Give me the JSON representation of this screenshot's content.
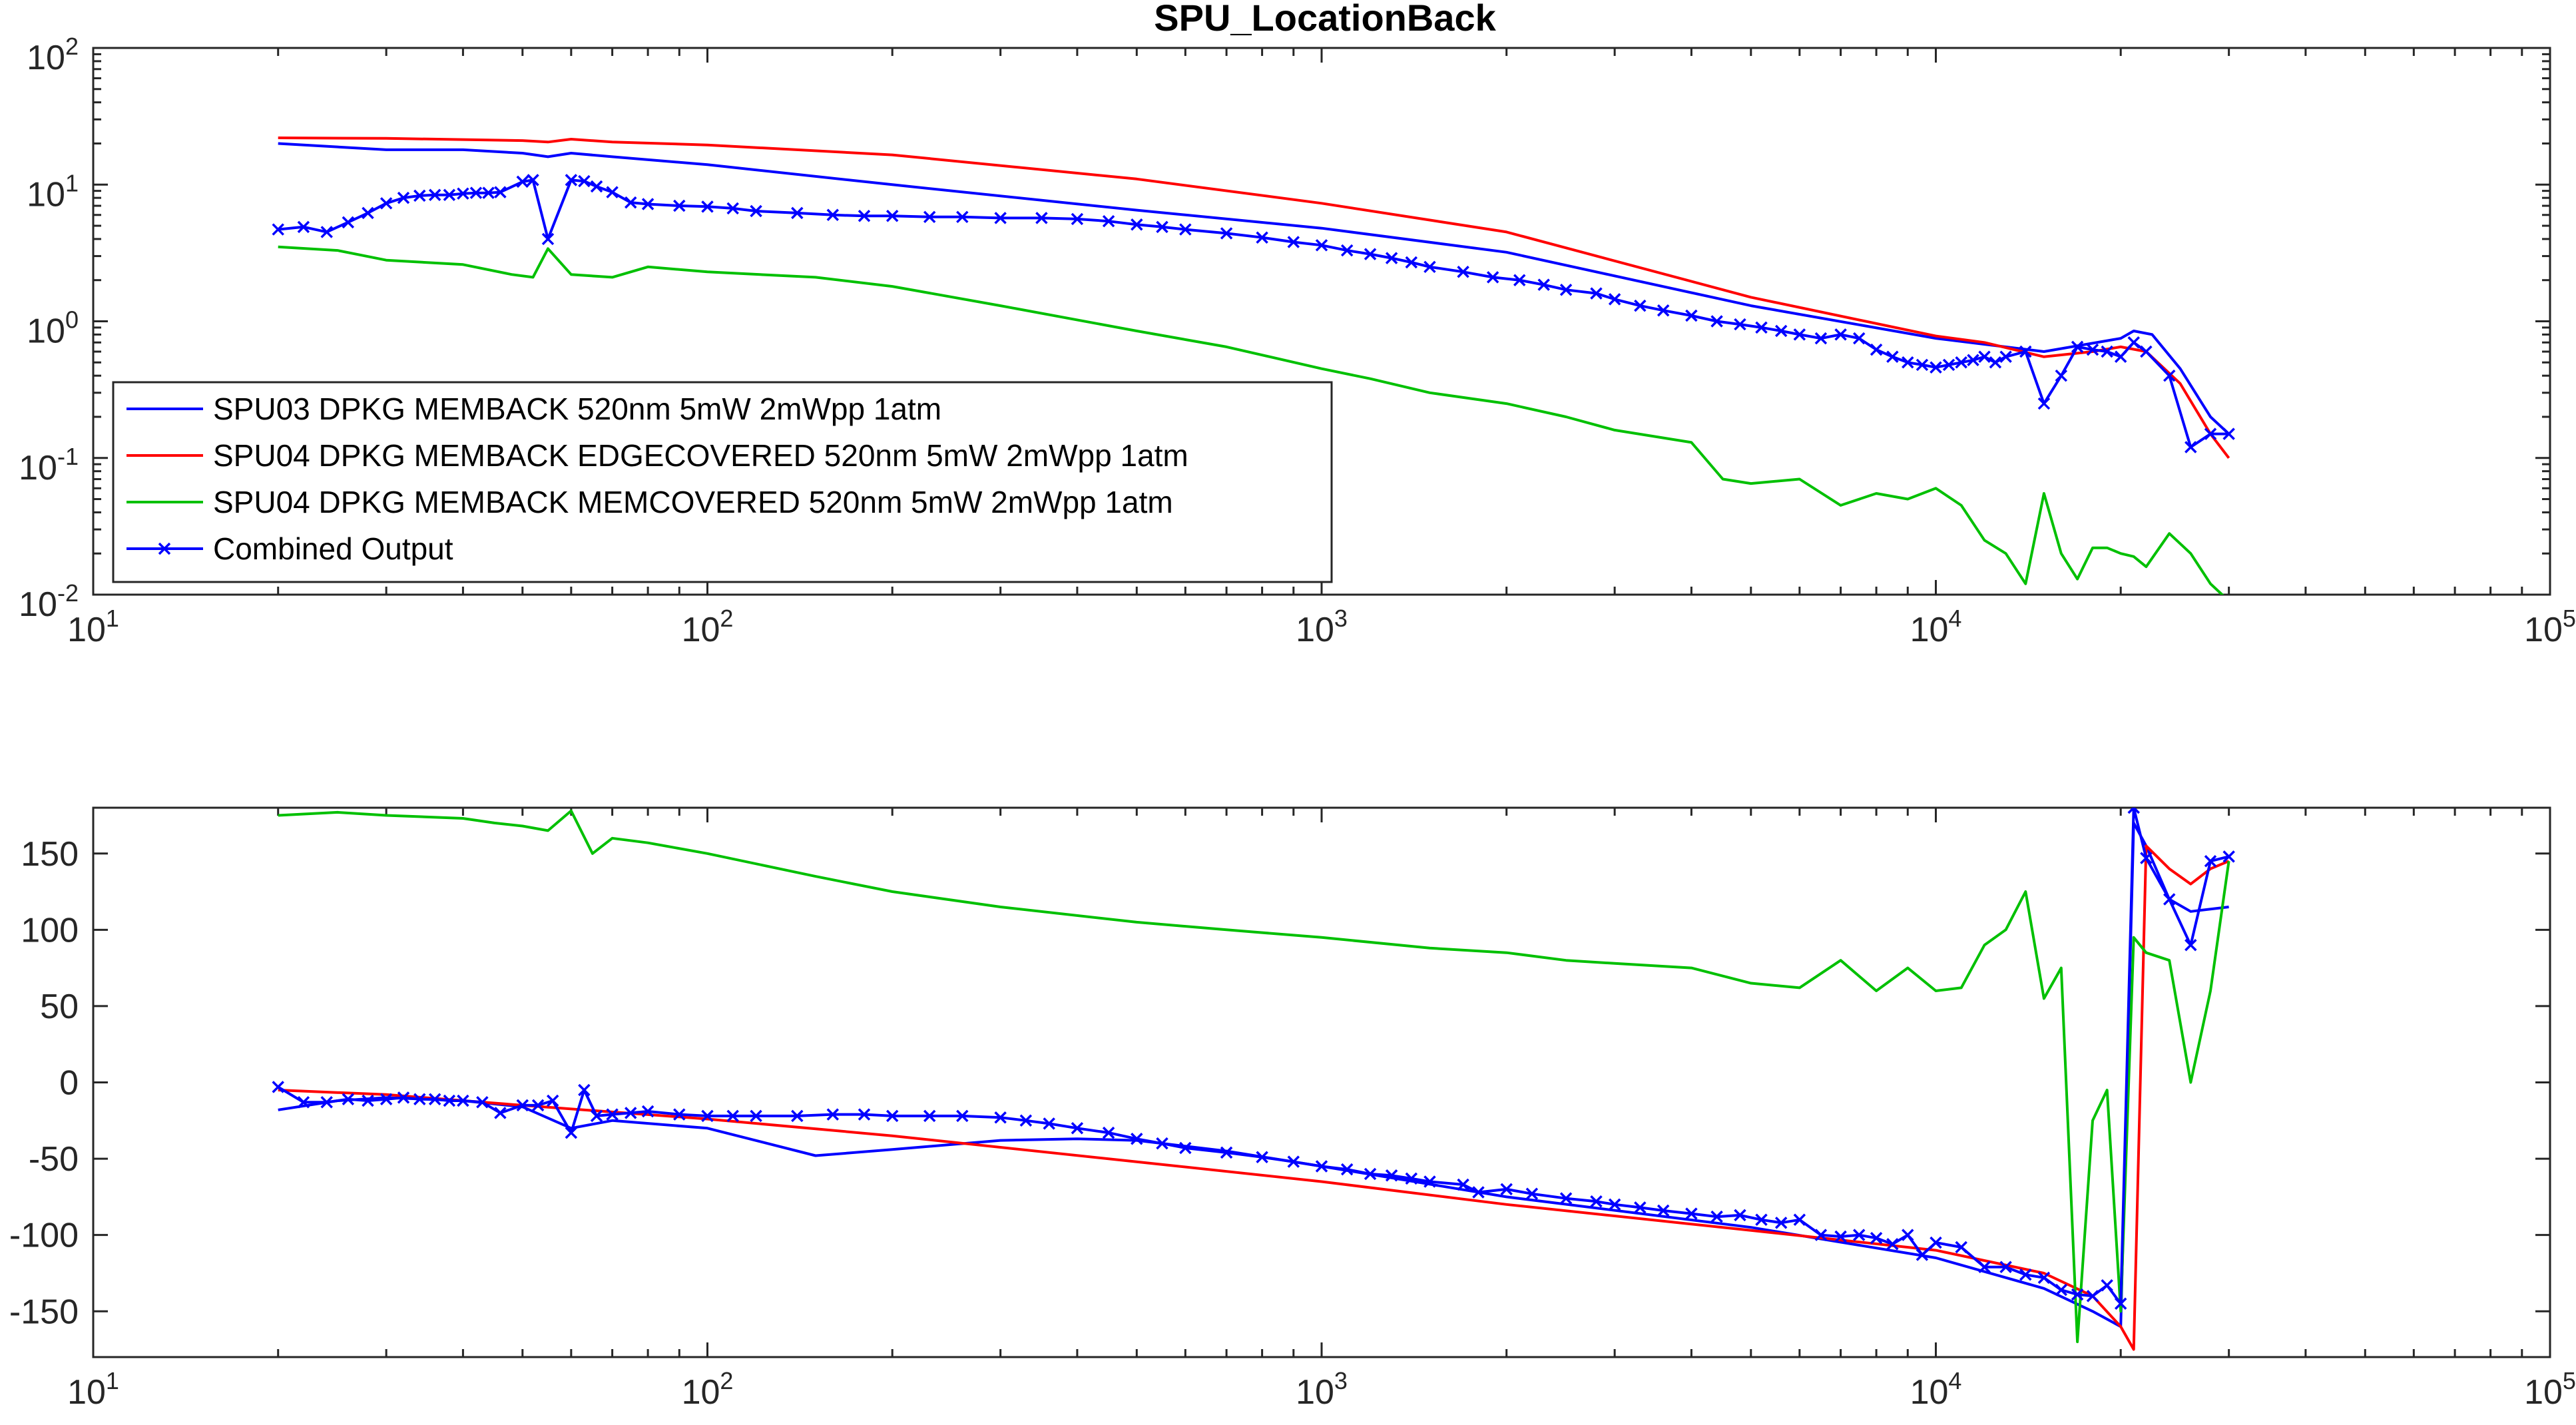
{
  "chart_data": {
    "title": "SPU_LocationBack",
    "panels": [
      {
        "type": "line",
        "name": "magnitude",
        "xscale": "log",
        "yscale": "log",
        "xlim": [
          10,
          100000
        ],
        "ylim": [
          0.01,
          100
        ],
        "xticks": [
          10,
          100,
          1000,
          10000,
          100000
        ],
        "yticks": [
          0.01,
          0.1,
          1,
          10,
          100
        ],
        "xtick_labels": [
          {
            "base": "10",
            "exp": "1"
          },
          {
            "base": "10",
            "exp": "2"
          },
          {
            "base": "10",
            "exp": "3"
          },
          {
            "base": "10",
            "exp": "4"
          },
          {
            "base": "10",
            "exp": "5"
          }
        ],
        "ytick_labels": [
          {
            "base": "10",
            "exp": "-2"
          },
          {
            "base": "10",
            "exp": "-1"
          },
          {
            "base": "10",
            "exp": "0"
          },
          {
            "base": "10",
            "exp": "1"
          },
          {
            "base": "10",
            "exp": "2"
          }
        ],
        "legend": {
          "location": "lower-left",
          "entries": [
            {
              "label": "SPU03 DPKG MEMBACK 520nm 5mW 2mWpp 1atm",
              "color": "#0000ff",
              "marker": false
            },
            {
              "label": "SPU04 DPKG MEMBACK EDGECOVERED 520nm 5mW 2mWpp 1atm",
              "color": "#ff0000",
              "marker": false
            },
            {
              "label": "SPU04 DPKG MEMBACK MEMCOVERED 520nm 5mW 2mWpp 1atm",
              "color": "#00c000",
              "marker": false
            },
            {
              "label": "Combined Output",
              "color": "#0000ff",
              "marker": true
            }
          ]
        },
        "series": [
          {
            "name": "SPU03 DPKG MEMBACK 520nm 5mW 2mWpp 1atm",
            "color": "#0000ff",
            "marker": false,
            "x": [
              20,
              30,
              40,
              50,
              55,
              60,
              70,
              100,
              200,
              500,
              1000,
              2000,
              5000,
              10000,
              15000,
              20000,
              21000,
              22500,
              25000,
              28000,
              30000
            ],
            "y": [
              20,
              18,
              18,
              17,
              16,
              17,
              16,
              14,
              10,
              6.5,
              4.8,
              3.2,
              1.3,
              0.75,
              0.6,
              0.75,
              0.85,
              0.8,
              0.45,
              0.2,
              0.15
            ]
          },
          {
            "name": "SPU04 DPKG MEMBACK EDGECOVERED 520nm 5mW 2mWpp 1atm",
            "color": "#ff0000",
            "marker": false,
            "x": [
              20,
              30,
              50,
              55,
              60,
              70,
              100,
              200,
              500,
              1000,
              2000,
              5000,
              10000,
              12000,
              15000,
              18000,
              20000,
              22000,
              25000,
              28000,
              30000
            ],
            "y": [
              22,
              21.8,
              21,
              20.5,
              21.5,
              20.5,
              19.5,
              16.5,
              11,
              7.3,
              4.5,
              1.5,
              0.78,
              0.7,
              0.55,
              0.6,
              0.65,
              0.6,
              0.35,
              0.15,
              0.1
            ]
          },
          {
            "name": "SPU04 DPKG MEMBACK MEMCOVERED 520nm 5mW 2mWpp 1atm",
            "color": "#00c000",
            "marker": false,
            "x": [
              20,
              25,
              30,
              40,
              48,
              52,
              55,
              60,
              70,
              80,
              100,
              150,
              200,
              300,
              500,
              700,
              1000,
              1200,
              1500,
              2000,
              2500,
              3000,
              4000,
              4500,
              5000,
              6000,
              7000,
              8000,
              9000,
              10000,
              11000,
              12000,
              13000,
              14000,
              15000,
              16000,
              17000,
              18000,
              19000,
              20000,
              21000,
              22000,
              24000,
              26000,
              28000,
              30000
            ],
            "y": [
              3.5,
              3.3,
              2.8,
              2.6,
              2.2,
              2.1,
              3.4,
              2.2,
              2.1,
              2.5,
              2.3,
              2.1,
              1.8,
              1.3,
              0.85,
              0.65,
              0.45,
              0.38,
              0.3,
              0.25,
              0.2,
              0.16,
              0.13,
              0.07,
              0.065,
              0.07,
              0.045,
              0.055,
              0.05,
              0.06,
              0.045,
              0.025,
              0.02,
              0.012,
              0.055,
              0.02,
              0.013,
              0.022,
              0.022,
              0.02,
              0.019,
              0.016,
              0.028,
              0.02,
              0.012,
              0.009
            ]
          },
          {
            "name": "Combined Output",
            "color": "#0000ff",
            "marker": true,
            "x": [
              20,
              22,
              24,
              26,
              28,
              30,
              32,
              34,
              36,
              38,
              40,
              42,
              44,
              46,
              50,
              52,
              55,
              60,
              63,
              66,
              70,
              75,
              80,
              90,
              100,
              110,
              120,
              140,
              160,
              180,
              200,
              230,
              260,
              300,
              350,
              400,
              450,
              500,
              550,
              600,
              700,
              800,
              900,
              1000,
              1100,
              1200,
              1300,
              1400,
              1500,
              1700,
              1900,
              2100,
              2300,
              2500,
              2800,
              3000,
              3300,
              3600,
              4000,
              4400,
              4800,
              5200,
              5600,
              6000,
              6500,
              7000,
              7500,
              8000,
              8500,
              9000,
              9500,
              10000,
              10500,
              11000,
              11500,
              12000,
              12500,
              13000,
              14000,
              15000,
              16000,
              17000,
              18000,
              19000,
              20000,
              21000,
              22000,
              24000,
              26000,
              28000,
              30000
            ],
            "y": [
              4.7,
              4.9,
              4.5,
              5.3,
              6.2,
              7.3,
              8.0,
              8.3,
              8.4,
              8.4,
              8.6,
              8.7,
              8.7,
              8.8,
              10.5,
              10.8,
              4.0,
              10.8,
              10.6,
              9.7,
              8.8,
              7.4,
              7.2,
              7.0,
              6.9,
              6.7,
              6.4,
              6.2,
              6.0,
              5.9,
              5.9,
              5.8,
              5.8,
              5.7,
              5.7,
              5.6,
              5.4,
              5.1,
              4.9,
              4.7,
              4.4,
              4.1,
              3.8,
              3.6,
              3.3,
              3.1,
              2.9,
              2.7,
              2.5,
              2.3,
              2.1,
              2.0,
              1.85,
              1.7,
              1.6,
              1.45,
              1.3,
              1.2,
              1.1,
              1.0,
              0.95,
              0.9,
              0.85,
              0.8,
              0.75,
              0.8,
              0.75,
              0.62,
              0.55,
              0.5,
              0.48,
              0.46,
              0.48,
              0.5,
              0.52,
              0.55,
              0.5,
              0.55,
              0.6,
              0.25,
              0.4,
              0.65,
              0.62,
              0.6,
              0.55,
              0.7,
              0.6,
              0.4,
              0.12,
              0.15,
              0.15
            ]
          }
        ]
      },
      {
        "type": "line",
        "name": "phase",
        "xscale": "log",
        "yscale": "linear",
        "xlim": [
          10,
          100000
        ],
        "ylim": [
          -180,
          180
        ],
        "xticks": [
          10,
          100,
          1000,
          10000,
          100000
        ],
        "yticks": [
          -150,
          -100,
          -50,
          0,
          50,
          100,
          150
        ],
        "xtick_labels": [
          {
            "base": "10",
            "exp": "1"
          },
          {
            "base": "10",
            "exp": "2"
          },
          {
            "base": "10",
            "exp": "3"
          },
          {
            "base": "10",
            "exp": "4"
          },
          {
            "base": "10",
            "exp": "5"
          }
        ],
        "ytick_labels": [
          "-150",
          "-100",
          "-50",
          "0",
          "50",
          "100",
          "150"
        ],
        "series": [
          {
            "name": "SPU03 DPKG MEMBACK 520nm 5mW 2mWpp 1atm",
            "color": "#0000ff",
            "marker": false,
            "x": [
              20,
              25,
              30,
              40,
              50,
              60,
              70,
              100,
              150,
              200,
              300,
              400,
              500,
              700,
              1000,
              2000,
              5000,
              10000,
              15000,
              18000,
              20000,
              21000,
              22000,
              24000,
              26000,
              30000
            ],
            "y": [
              -18,
              -12,
              -10,
              -12,
              -16,
              -30,
              -25,
              -30,
              -48,
              -44,
              -38,
              -37,
              -38,
              -45,
              -55,
              -75,
              -95,
              -115,
              -135,
              -150,
              -160,
              170,
              155,
              120,
              112,
              115
            ]
          },
          {
            "name": "SPU04 DPKG MEMBACK EDGECOVERED 520nm 5mW 2mWpp 1atm",
            "color": "#ff0000",
            "marker": false,
            "x": [
              20,
              30,
              50,
              100,
              200,
              500,
              1000,
              2000,
              5000,
              10000,
              15000,
              18000,
              20000,
              21000,
              22000,
              24000,
              26000,
              28000,
              30000
            ],
            "y": [
              -5,
              -8,
              -15,
              -24,
              -35,
              -52,
              -65,
              -80,
              -97,
              -110,
              -125,
              -140,
              -160,
              -175,
              155,
              140,
              130,
              140,
              145
            ]
          },
          {
            "name": "SPU04 DPKG MEMBACK MEMCOVERED 520nm 5mW 2mWpp 1atm",
            "color": "#00c000",
            "marker": false,
            "x": [
              20,
              25,
              30,
              40,
              45,
              50,
              55,
              60,
              65,
              70,
              80,
              100,
              150,
              200,
              300,
              500,
              700,
              1000,
              1500,
              2000,
              2500,
              3000,
              4000,
              5000,
              6000,
              7000,
              8000,
              9000,
              10000,
              11000,
              12000,
              13000,
              14000,
              15000,
              16000,
              17000,
              18000,
              19000,
              20000,
              21000,
              22000,
              24000,
              26000,
              28000,
              30000
            ],
            "y": [
              175,
              177,
              175,
              173,
              170,
              168,
              165,
              178,
              150,
              160,
              157,
              150,
              135,
              125,
              115,
              105,
              100,
              95,
              88,
              85,
              80,
              78,
              75,
              65,
              62,
              80,
              60,
              75,
              60,
              62,
              90,
              100,
              125,
              55,
              75,
              -170,
              -25,
              -5,
              -150,
              95,
              85,
              80,
              0,
              60,
              145
            ]
          },
          {
            "name": "Combined Output",
            "color": "#0000ff",
            "marker": true,
            "x": [
              20,
              22,
              24,
              26,
              28,
              30,
              32,
              34,
              36,
              38,
              40,
              43,
              46,
              50,
              53,
              56,
              60,
              63,
              66,
              70,
              75,
              80,
              90,
              100,
              110,
              120,
              140,
              160,
              180,
              200,
              230,
              260,
              300,
              330,
              360,
              400,
              450,
              500,
              550,
              600,
              700,
              800,
              900,
              1000,
              1100,
              1200,
              1300,
              1400,
              1500,
              1700,
              1800,
              2000,
              2200,
              2500,
              2800,
              3000,
              3300,
              3600,
              4000,
              4400,
              4800,
              5200,
              5600,
              6000,
              6500,
              7000,
              7500,
              8000,
              8500,
              9000,
              9500,
              10000,
              11000,
              12000,
              13000,
              14000,
              15000,
              16000,
              17000,
              18000,
              19000,
              20000,
              21000,
              22000,
              24000,
              26000,
              28000,
              30000
            ],
            "y": [
              -3,
              -13,
              -13,
              -11,
              -12,
              -11,
              -10,
              -11,
              -11,
              -12,
              -12,
              -13,
              -20,
              -15,
              -15,
              -12,
              -33,
              -5,
              -22,
              -21,
              -20,
              -19,
              -21,
              -22,
              -22,
              -22,
              -22,
              -21,
              -21,
              -22,
              -22,
              -22,
              -23,
              -25,
              -27,
              -30,
              -33,
              -37,
              -40,
              -43,
              -46,
              -49,
              -52,
              -55,
              -57,
              -60,
              -61,
              -63,
              -65,
              -67,
              -72,
              -70,
              -73,
              -76,
              -78,
              -80,
              -82,
              -84,
              -86,
              -88,
              -87,
              -90,
              -92,
              -90,
              -100,
              -101,
              -100,
              -102,
              -106,
              -100,
              -113,
              -105,
              -108,
              -121,
              -121,
              -126,
              -128,
              -136,
              -139,
              -140,
              -133,
              -145,
              180,
              147,
              120,
              90,
              145,
              148
            ]
          }
        ]
      }
    ]
  }
}
